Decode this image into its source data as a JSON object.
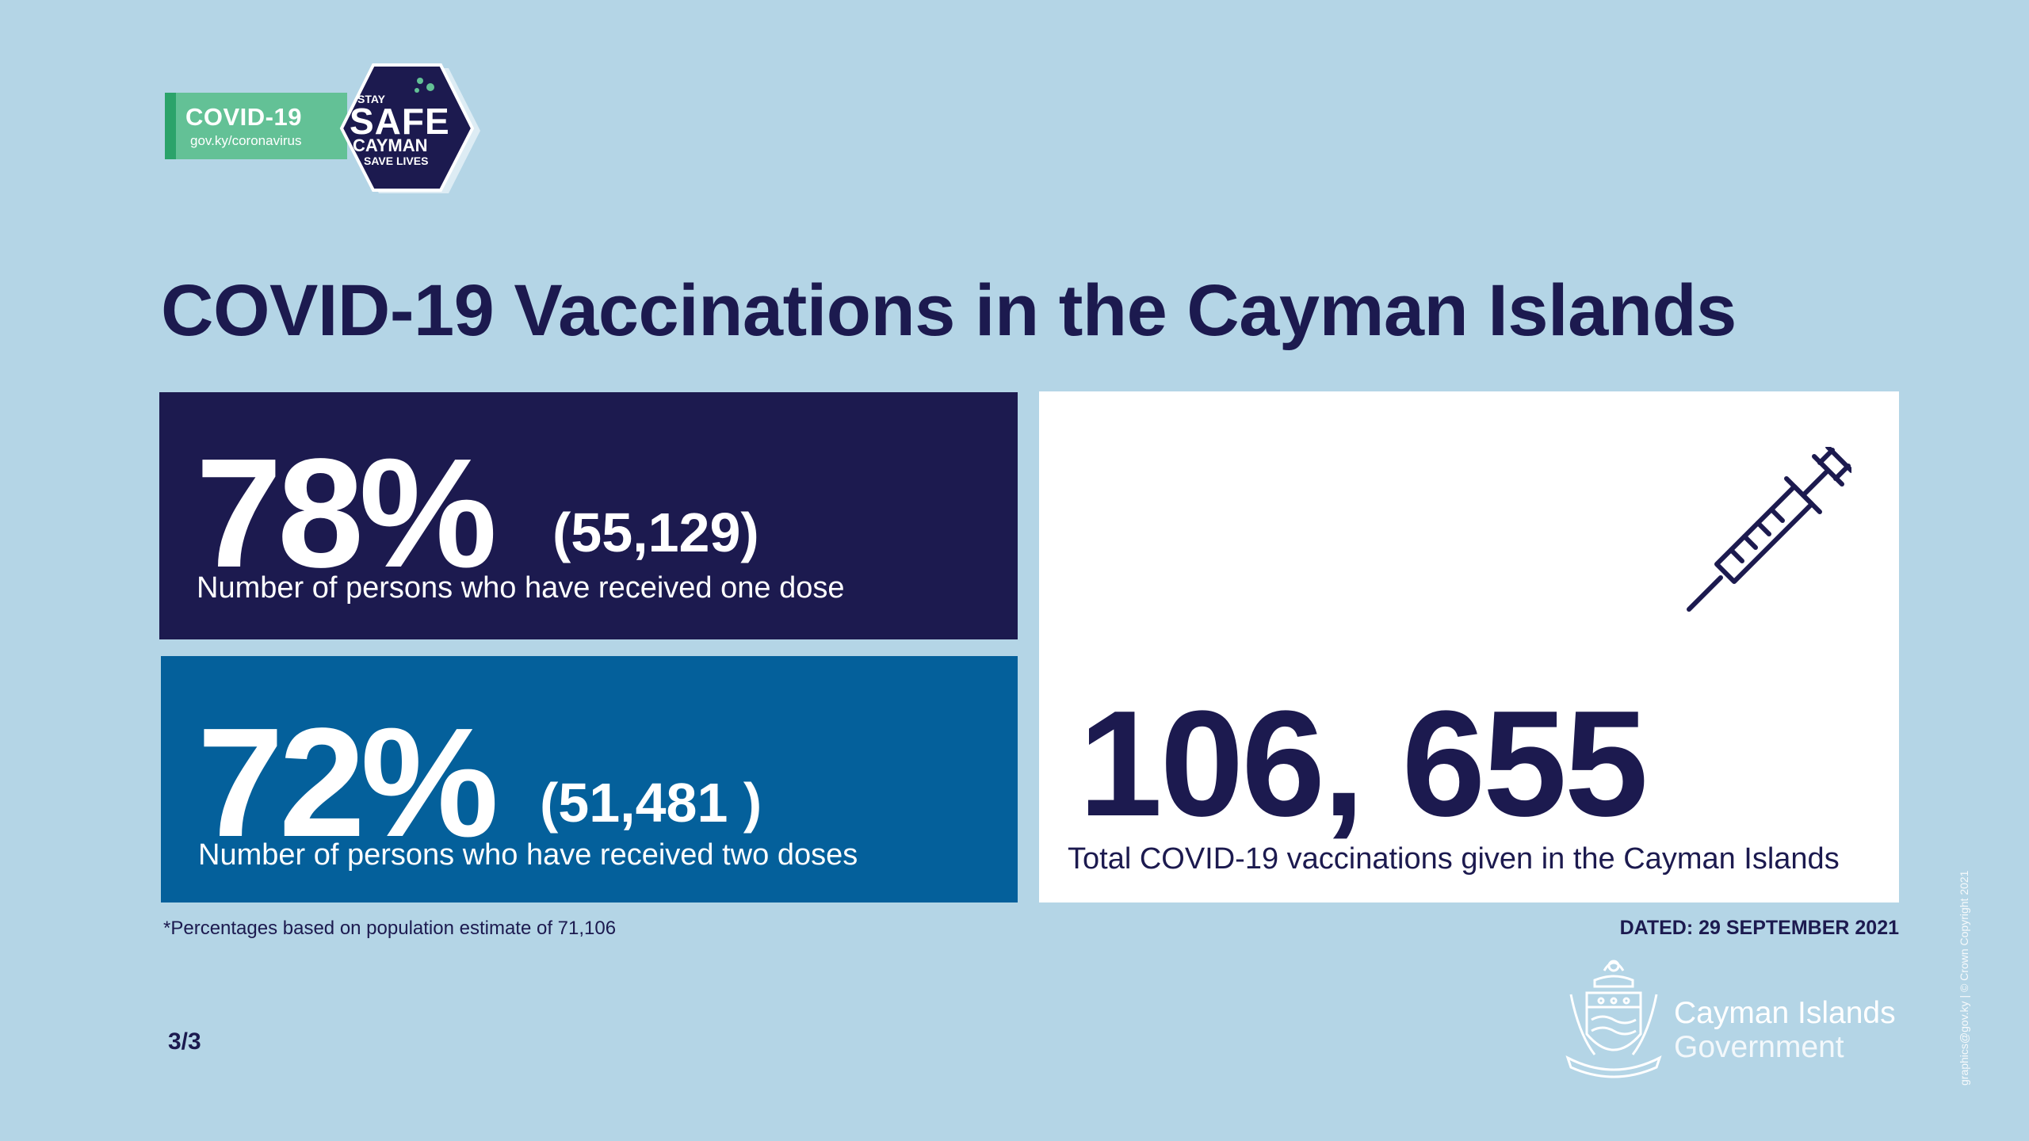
{
  "badge": {
    "title": "COVID-19",
    "url": "gov.ky/coronavirus",
    "stay": "STAY",
    "safe": "SAFE",
    "cayman": "CAYMAN",
    "save_lives": "SAVE LIVES",
    "colors": {
      "green": "#63c196",
      "hex": "#1c1a4f"
    }
  },
  "heading": "COVID-19 Vaccinations in the Cayman Islands",
  "stats": {
    "one_dose": {
      "percent": "78%",
      "count": "(55,129)",
      "label": "Number of persons who have received one dose",
      "color": "#1c1a4f"
    },
    "two_doses": {
      "percent": "72%",
      "count": "(51,481 )",
      "label": "Number of persons who have received two doses",
      "color": "#04609b"
    },
    "total": {
      "number": "106, 655",
      "label": "Total COVID-19 vaccinations given in the Cayman Islands",
      "icon": "syringe-icon"
    }
  },
  "footnote": "*Percentages based on population estimate of 71,106",
  "dated": "DATED: 29 SEPTEMBER 2021",
  "page_number": "3/3",
  "government": {
    "name": "Cayman Islands",
    "sub": "Government",
    "icon": "coat-of-arms-icon"
  },
  "credit": "graphics@gov.ky | © Crown Copyright 2021"
}
